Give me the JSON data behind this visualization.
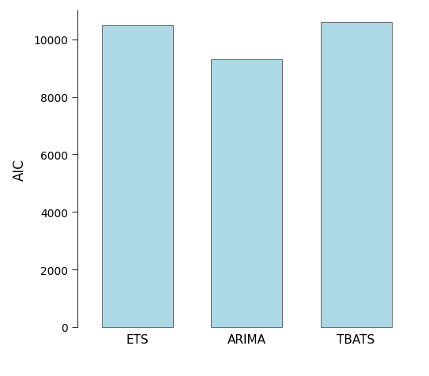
{
  "categories": [
    "ETS",
    "ARIMA",
    "TBATS"
  ],
  "values": [
    10500,
    9300,
    10600
  ],
  "bar_color": "#ADD8E6",
  "bar_edge_color": "#666666",
  "bar_edge_width": 0.7,
  "ylabel": "AIC",
  "ylim": [
    0,
    11000
  ],
  "yticks": [
    0,
    2000,
    4000,
    6000,
    8000,
    10000
  ],
  "background_color": "#ffffff",
  "plot_bg_color": "#ffffff",
  "bar_width": 0.65,
  "ylabel_fontsize": 12,
  "tick_fontsize": 10,
  "xtick_fontsize": 11
}
